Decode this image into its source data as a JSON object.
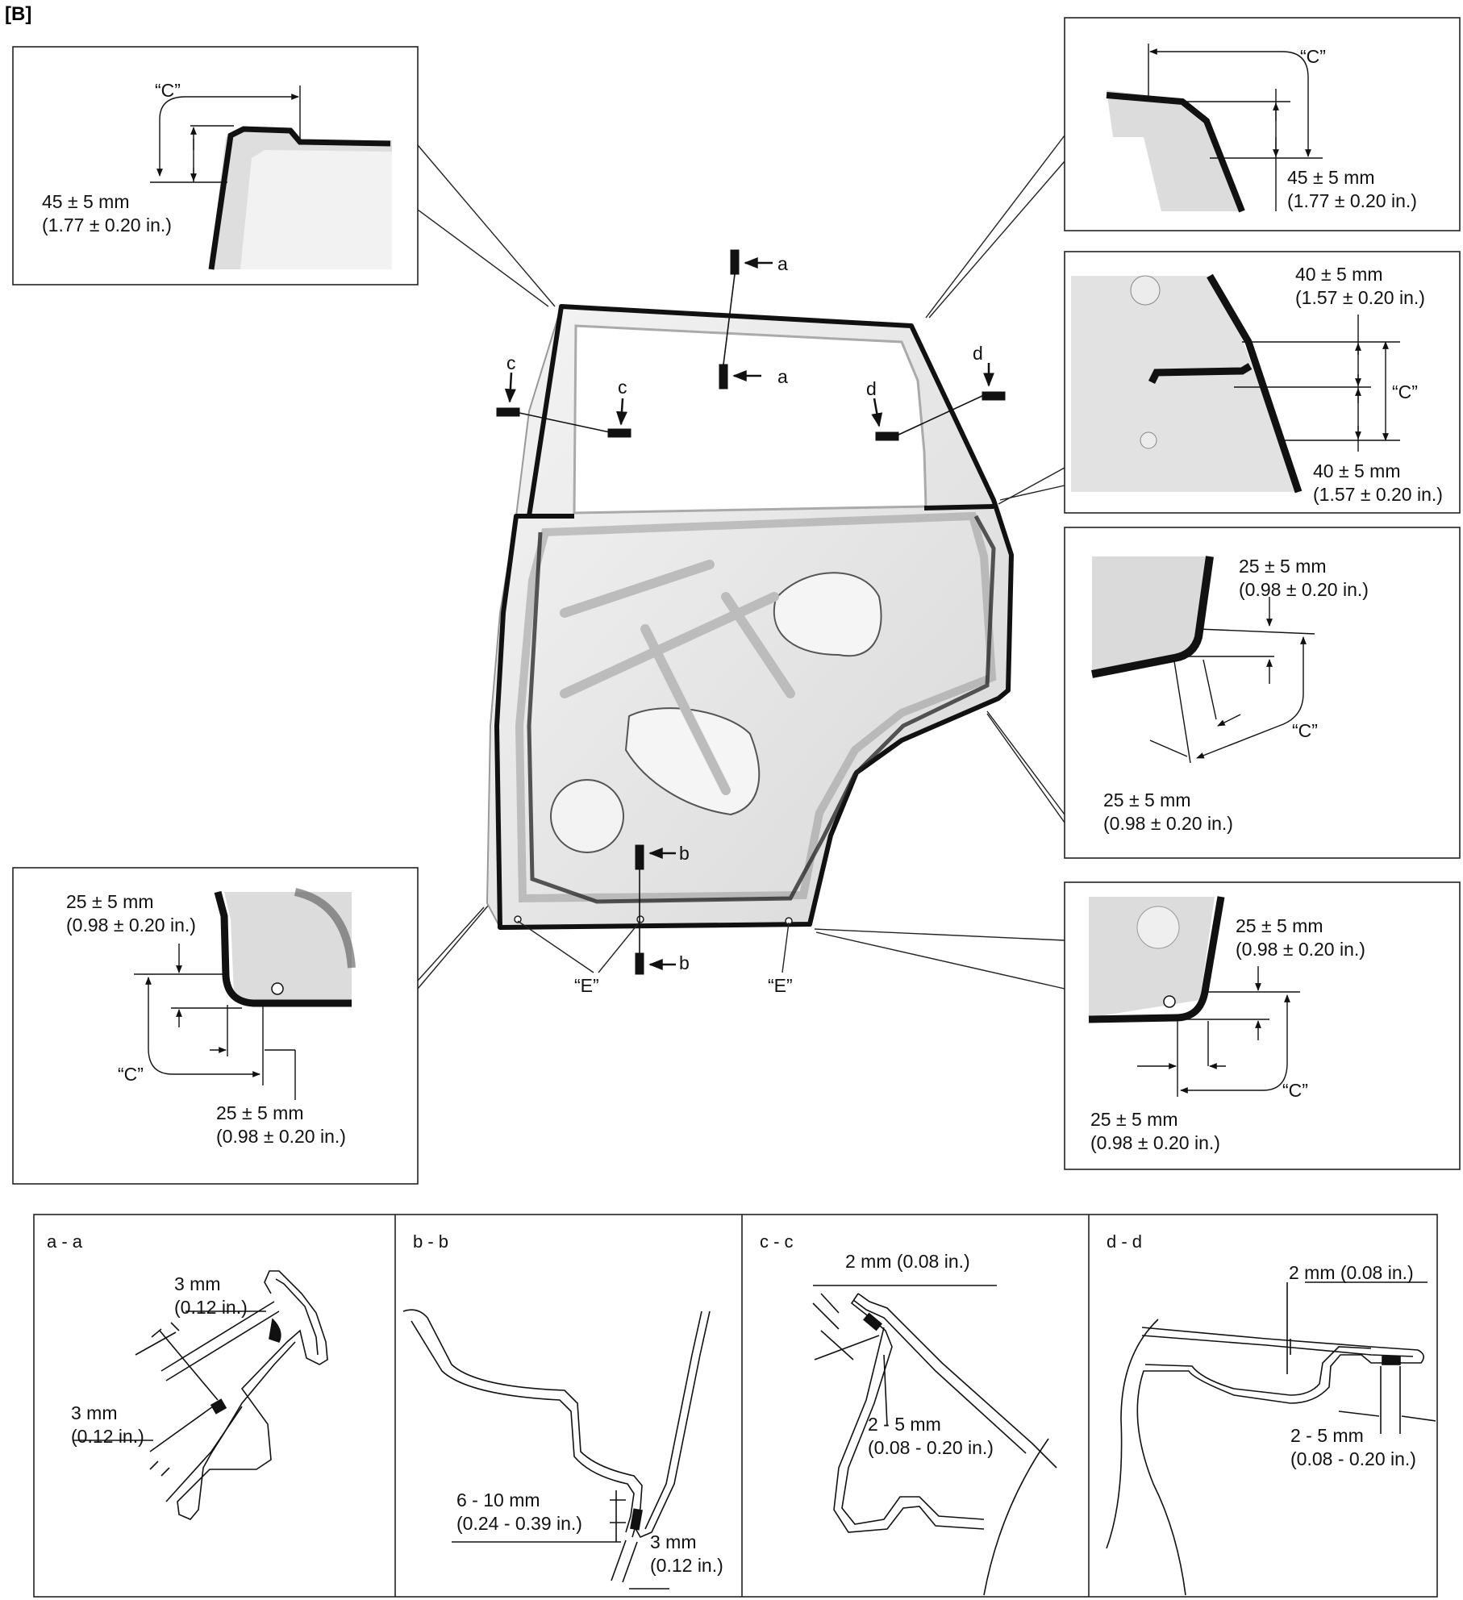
{
  "figure_tag": "[B]",
  "sections": {
    "a": "a",
    "b": "b",
    "c": "c",
    "d": "d",
    "aa": "a - a",
    "bb": "b - b",
    "cc": "c - c",
    "dd": "d - d"
  },
  "marks": {
    "C": "“C”",
    "E": "“E”"
  },
  "callouts": {
    "top_left": {
      "mm": "45 ± 5 mm",
      "in": "(1.77 ± 0.20 in.)"
    },
    "top_right": {
      "mm": "45 ± 5 mm",
      "in": "(1.77 ± 0.20 in.)"
    },
    "belt_right_upper": {
      "mm": "40 ± 5 mm",
      "in": "(1.57 ± 0.20 in.)"
    },
    "belt_right_lower": {
      "mm": "40 ± 5 mm",
      "in": "(1.57 ± 0.20 in.)"
    },
    "rear_corner_upper": {
      "mm": "25 ± 5 mm",
      "in": "(0.98 ± 0.20 in.)"
    },
    "rear_corner_lower": {
      "mm": "25 ± 5 mm",
      "in": "(0.98 ± 0.20 in.)"
    },
    "bottom_left_upper": {
      "mm": "25 ± 5 mm",
      "in": "(0.98 ± 0.20 in.)"
    },
    "bottom_left_lower": {
      "mm": "25 ± 5 mm",
      "in": "(0.98 ± 0.20 in.)"
    },
    "bottom_right_upper": {
      "mm": "25 ± 5 mm",
      "in": "(0.98 ± 0.20 in.)"
    },
    "bottom_right_lower": {
      "mm": "25 ± 5 mm",
      "in": "(0.98 ± 0.20 in.)"
    }
  },
  "cross_sections": {
    "aa_upper": {
      "mm": "3 mm",
      "in": "(0.12 in.)"
    },
    "aa_lower": {
      "mm": "3 mm",
      "in": "(0.12 in.)"
    },
    "bb_gap": {
      "range": "6 - 10 mm",
      "in": "(0.24 - 0.39 in.)"
    },
    "bb_thick": {
      "mm": "3 mm",
      "in": "(0.12 in.)"
    },
    "cc_thick": {
      "text": "2 mm (0.08 in.)"
    },
    "cc_gap": {
      "range": "2 - 5 mm",
      "in": "(0.08 - 0.20 in.)"
    },
    "dd_thick": {
      "text": "2 mm (0.08 in.)"
    },
    "dd_gap": {
      "range": "2 - 5 mm",
      "in": "(0.08 - 0.20 in.)"
    }
  },
  "colors": {
    "sealer": "#111111",
    "panel": "#e9e9e9",
    "panel_edge": "#9a9a9a"
  }
}
